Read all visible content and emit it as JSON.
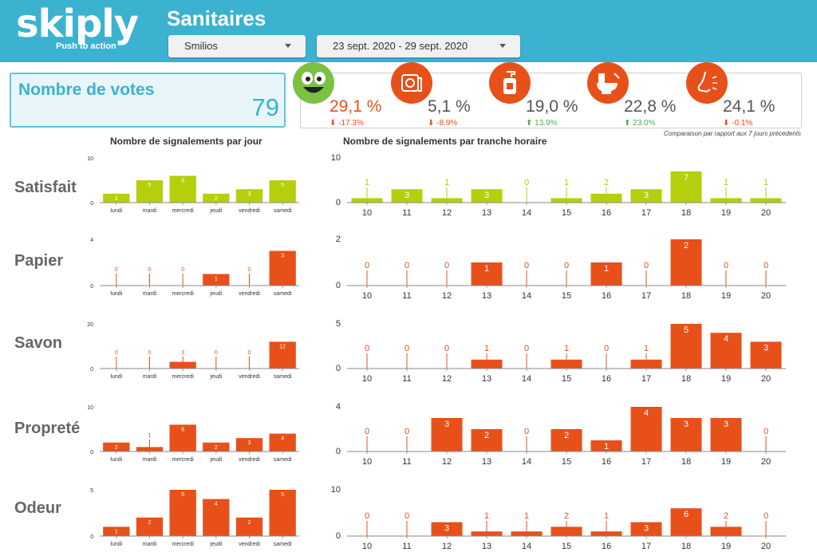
{
  "header": {
    "logo_text": "skiply",
    "logo_tagline": "Push to action",
    "title": "Sanitaires",
    "site_select": "Smilios",
    "date_select": "23 sept. 2020 - 29 sept. 2020"
  },
  "votes": {
    "label": "Nombre de votes",
    "value": "79"
  },
  "kpis": [
    {
      "icon": "smiley-face-icon",
      "color": "#7bc142",
      "value": "29,1 %",
      "delta": "⬇ -17.3%",
      "value_color": "#e8501a",
      "delta_color": "#e8501a"
    },
    {
      "icon": "toilet-paper-icon",
      "color": "#e8501a",
      "value": "5,1 %",
      "delta": "⬇ -8.9%",
      "value_color": "#555555",
      "delta_color": "#e8501a"
    },
    {
      "icon": "soap-dispenser-icon",
      "color": "#e8501a",
      "value": "19,0 %",
      "delta": "⬆ 13.9%",
      "value_color": "#555555",
      "delta_color": "#4caf50"
    },
    {
      "icon": "toilet-icon",
      "color": "#e8501a",
      "value": "22,8 %",
      "delta": "⬆ 23.0%",
      "value_color": "#555555",
      "delta_color": "#4caf50"
    },
    {
      "icon": "nose-icon",
      "color": "#e8501a",
      "value": "24,1 %",
      "delta": "⬇ -0.1%",
      "value_color": "#555555",
      "delta_color": "#e8501a"
    }
  ],
  "kpi_note": "Comparaison par rapport aux 7 jours précédents",
  "sections": {
    "daily_title": "Nombre de signalements par jour",
    "hourly_title": "Nombre de signalements par tranche horaire"
  },
  "chart_data": [
    {
      "type": "bar",
      "row": "Satisfait",
      "kind": "daily",
      "color": "#b5cf0c",
      "categories": [
        "lundi",
        "mardi",
        "mercredi",
        "jeudi",
        "vendredi",
        "samedi"
      ],
      "values": [
        2,
        5,
        6,
        2,
        3,
        5
      ],
      "ylim": [
        0,
        10
      ],
      "ytick": 10
    },
    {
      "type": "bar",
      "row": "Satisfait",
      "kind": "hourly",
      "color": "#b5cf0c",
      "categories": [
        "10",
        "11",
        "12",
        "13",
        "14",
        "15",
        "16",
        "17",
        "18",
        "19",
        "20"
      ],
      "values": [
        1,
        3,
        1,
        3,
        0,
        1,
        2,
        3,
        7,
        1,
        1
      ],
      "ylim": [
        0,
        10
      ],
      "ytick": 10
    },
    {
      "type": "bar",
      "row": "Papier",
      "kind": "daily",
      "color": "#e8501a",
      "categories": [
        "lundi",
        "mardi",
        "mercredi",
        "jeudi",
        "vendredi",
        "samedi"
      ],
      "values": [
        0,
        0,
        0,
        1,
        0,
        3
      ],
      "ylim": [
        0,
        4
      ],
      "ytick": 4
    },
    {
      "type": "bar",
      "row": "Papier",
      "kind": "hourly",
      "color": "#e8501a",
      "categories": [
        "10",
        "11",
        "12",
        "13",
        "14",
        "15",
        "16",
        "17",
        "18",
        "19",
        "20"
      ],
      "values": [
        0,
        0,
        0,
        1,
        0,
        0,
        1,
        0,
        2,
        0,
        0
      ],
      "ylim": [
        0,
        2
      ],
      "ytick": 2
    },
    {
      "type": "bar",
      "row": "Savon",
      "kind": "daily",
      "color": "#e8501a",
      "categories": [
        "lundi",
        "mardi",
        "mercredi",
        "jeudi",
        "vendredi",
        "samedi"
      ],
      "values": [
        0,
        0,
        3,
        0,
        0,
        12
      ],
      "ylim": [
        0,
        20
      ],
      "ytick": 20
    },
    {
      "type": "bar",
      "row": "Savon",
      "kind": "hourly",
      "color": "#e8501a",
      "categories": [
        "10",
        "11",
        "12",
        "13",
        "14",
        "15",
        "16",
        "17",
        "18",
        "19",
        "20"
      ],
      "values": [
        0,
        0,
        0,
        1,
        0,
        1,
        0,
        1,
        5,
        4,
        3
      ],
      "ylim": [
        0,
        5
      ],
      "ytick": 5
    },
    {
      "type": "bar",
      "row": "Propreté",
      "kind": "daily",
      "color": "#e8501a",
      "categories": [
        "lundi",
        "mardi",
        "mercredi",
        "jeudi",
        "vendredi",
        "samedi"
      ],
      "values": [
        2,
        1,
        6,
        2,
        3,
        4
      ],
      "ylim": [
        0,
        10
      ],
      "ytick": 10
    },
    {
      "type": "bar",
      "row": "Propreté",
      "kind": "hourly",
      "color": "#e8501a",
      "categories": [
        "10",
        "11",
        "12",
        "13",
        "14",
        "15",
        "16",
        "17",
        "18",
        "19",
        "20"
      ],
      "values": [
        0,
        0,
        3,
        2,
        0,
        2,
        1,
        4,
        3,
        3,
        0
      ],
      "ylim": [
        0,
        4
      ],
      "ytick": 4
    },
    {
      "type": "bar",
      "row": "Odeur",
      "kind": "daily",
      "color": "#e8501a",
      "categories": [
        "lundi",
        "mardi",
        "mercredi",
        "jeudi",
        "vendredi",
        "samedi"
      ],
      "values": [
        1,
        2,
        5,
        4,
        2,
        5
      ],
      "ylim": [
        0,
        5
      ],
      "ytick": 5
    },
    {
      "type": "bar",
      "row": "Odeur",
      "kind": "hourly",
      "color": "#e8501a",
      "categories": [
        "10",
        "11",
        "12",
        "13",
        "14",
        "15",
        "16",
        "17",
        "18",
        "19",
        "20"
      ],
      "values": [
        0,
        0,
        3,
        1,
        1,
        2,
        1,
        3,
        6,
        2,
        0
      ],
      "ylim": [
        0,
        10
      ],
      "ytick": 10
    }
  ]
}
